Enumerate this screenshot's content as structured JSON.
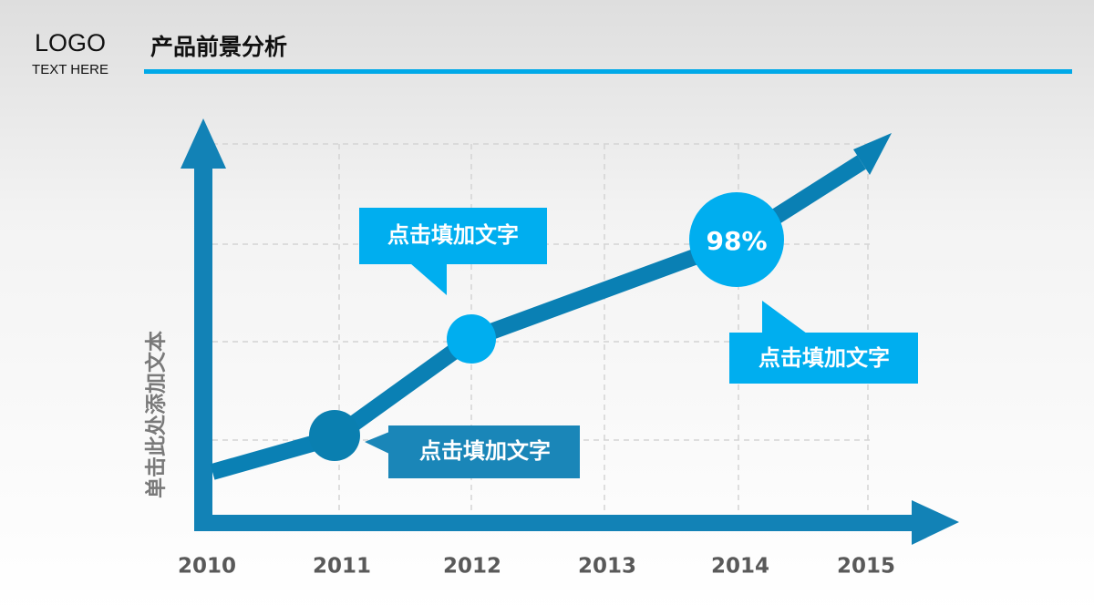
{
  "header": {
    "logo": "LOGO",
    "logo_sub": "TEXT HERE",
    "title": "产品前景分析"
  },
  "diagram": {
    "y_axis_label": "单击此处添加文本",
    "x_labels": [
      "2010",
      "2011",
      "2012",
      "2013",
      "2014",
      "2015"
    ],
    "badge": "98%",
    "callouts": [
      "点击填加文字",
      "点击填加文字",
      "点击填加文字"
    ]
  }
}
